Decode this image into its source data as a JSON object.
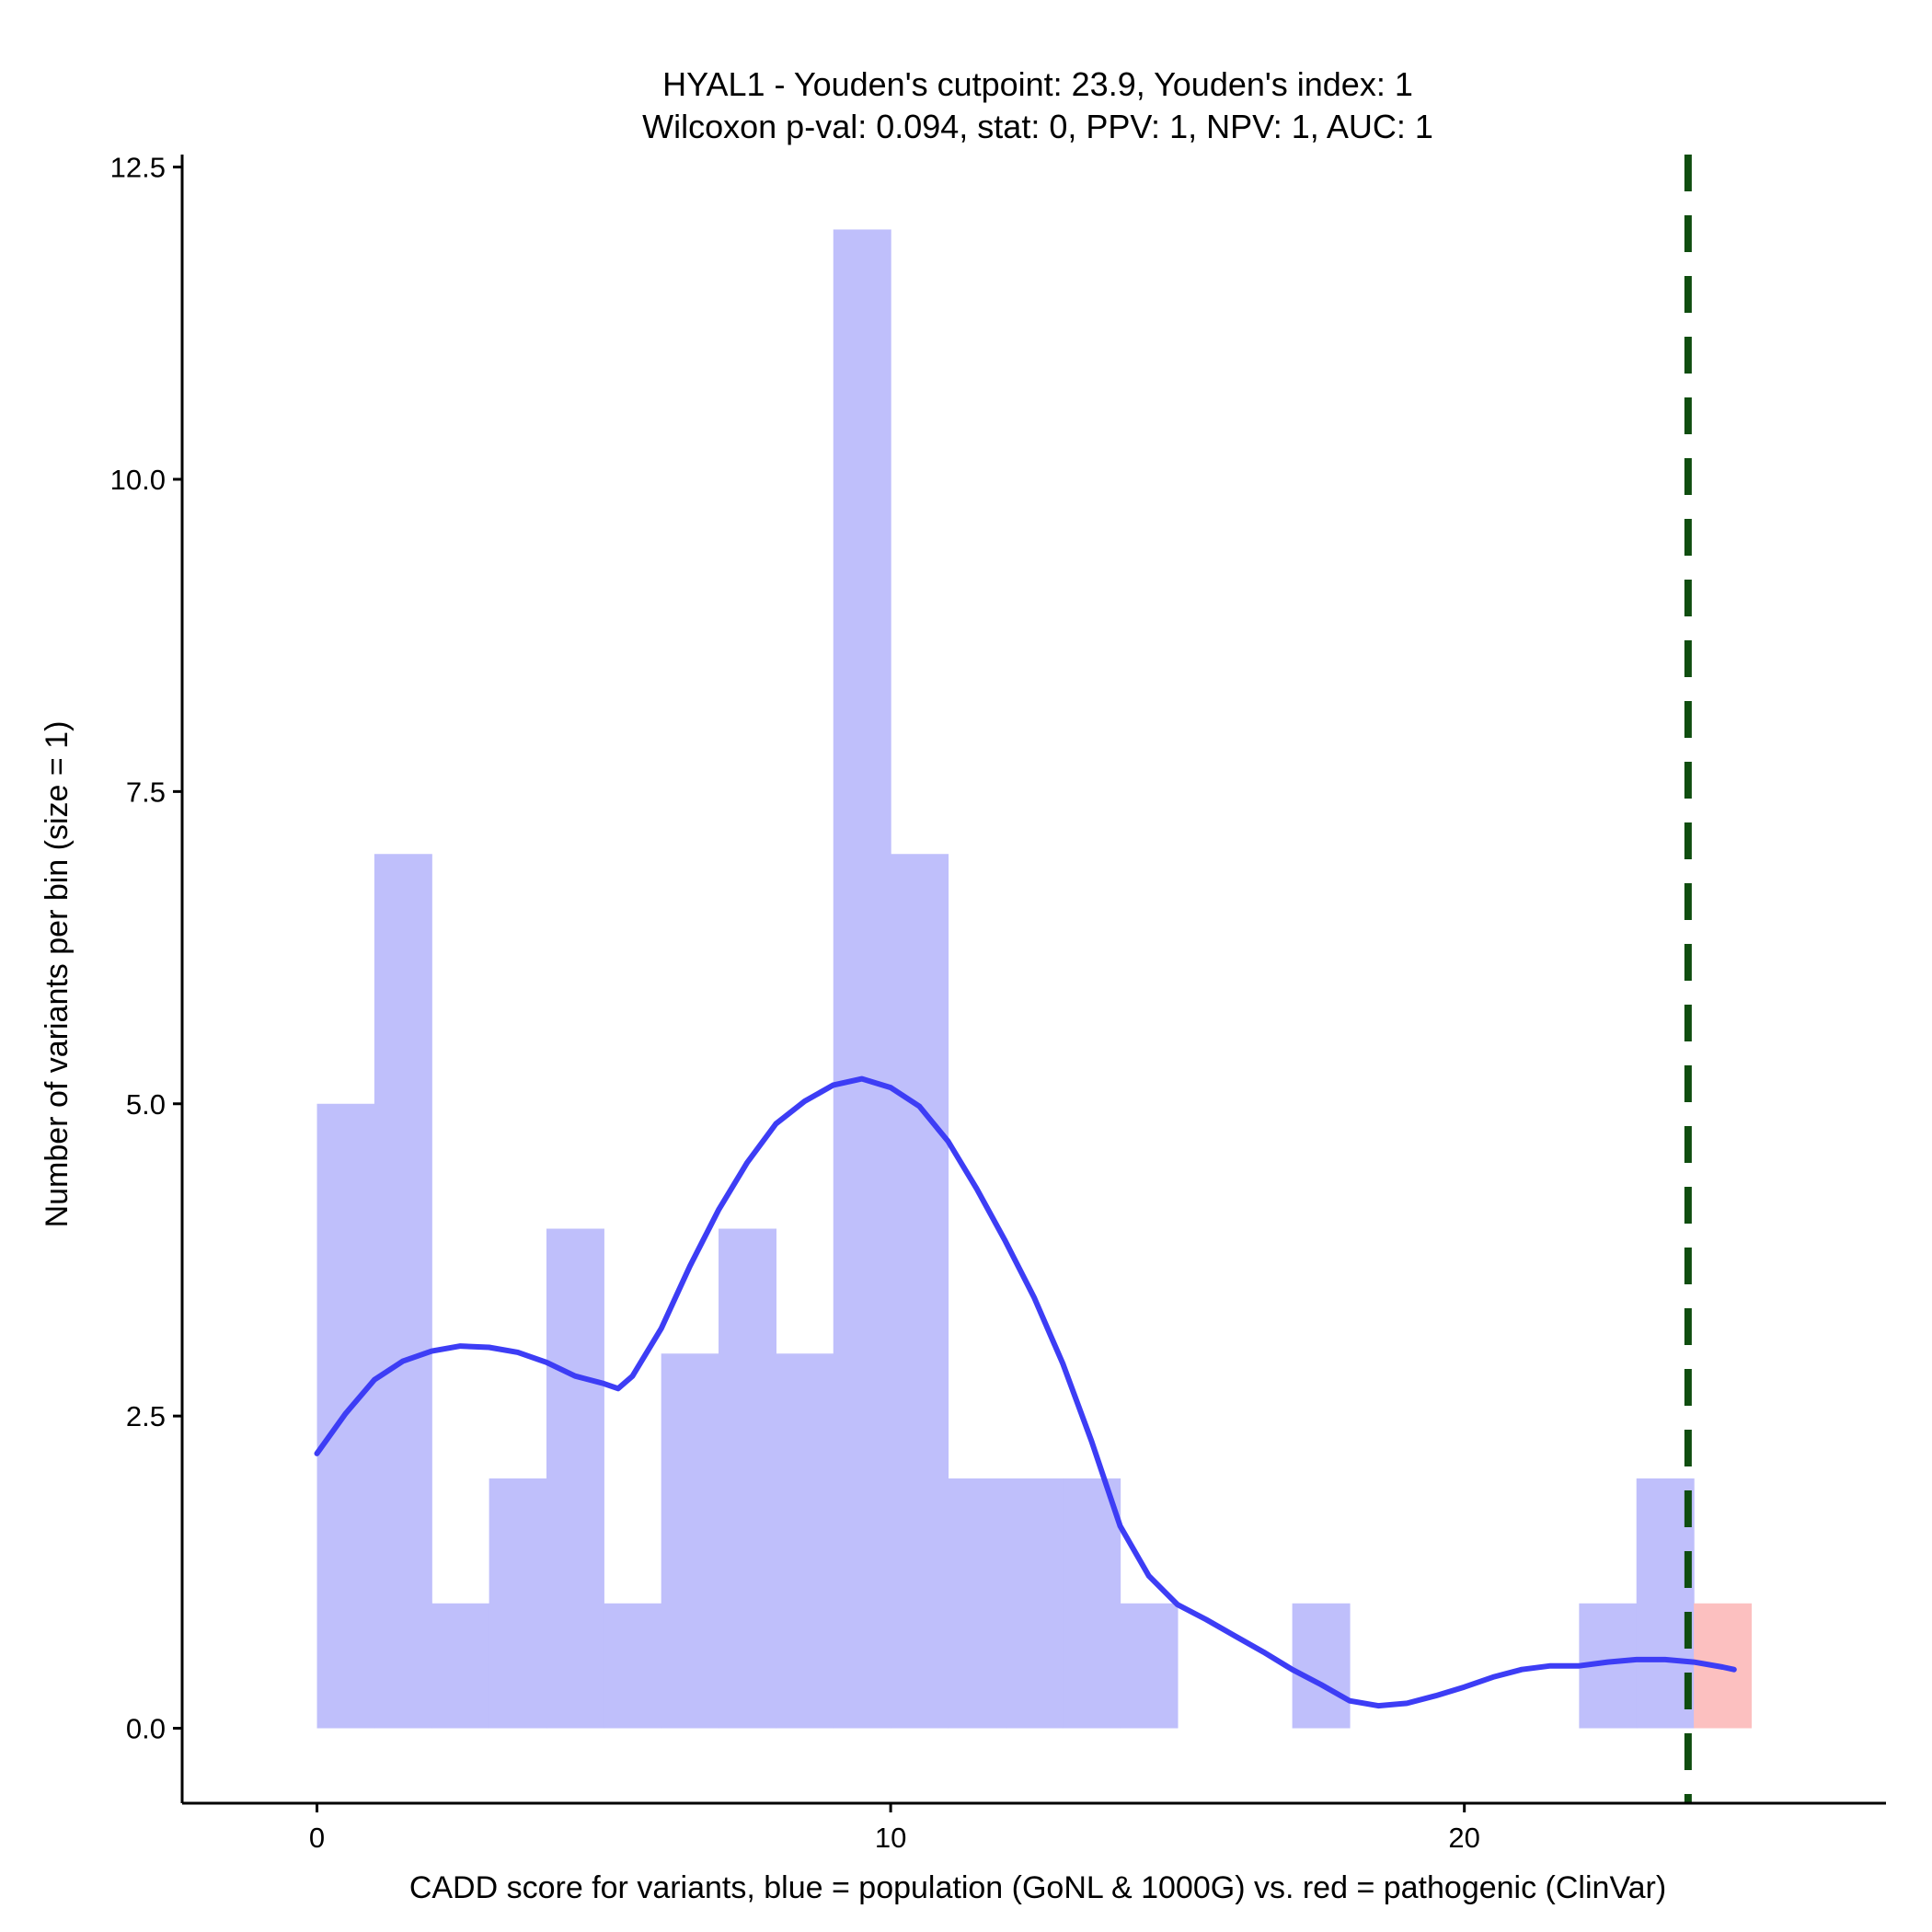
{
  "chart_data": {
    "type": "bar",
    "title_line1": "HYAL1 - Youden's cutpoint: 23.9, Youden's index: 1",
    "title_line2": "Wilcoxon p-val: 0.094, stat: 0, PPV: 1, NPV: 1, AUC: 1",
    "xlabel": "CADD score for variants, blue = population (GoNL & 1000G) vs. red = pathogenic (ClinVar)",
    "ylabel": "Number of variants per bin (size = 1)",
    "xlim": [
      -2.35,
      27.35
    ],
    "ylim": [
      -0.6,
      12.6
    ],
    "x_ticks": [
      0,
      10,
      20
    ],
    "x_tick_labels": [
      "0",
      "10",
      "20"
    ],
    "y_ticks": [
      0,
      2.5,
      5,
      7.5,
      10,
      12.5
    ],
    "y_tick_labels": [
      "0.0",
      "2.5",
      "5.0",
      "7.5",
      "10.0",
      "12.5"
    ],
    "bin_width": 1,
    "series": [
      {
        "name": "population (GoNL & 1000G)",
        "color": "#bfbffb",
        "bins": [
          {
            "x0": 0,
            "count": 5
          },
          {
            "x0": 1,
            "count": 7
          },
          {
            "x0": 2,
            "count": 1
          },
          {
            "x0": 3,
            "count": 2
          },
          {
            "x0": 4,
            "count": 4
          },
          {
            "x0": 5,
            "count": 1
          },
          {
            "x0": 6,
            "count": 3
          },
          {
            "x0": 7,
            "count": 4
          },
          {
            "x0": 8,
            "count": 3
          },
          {
            "x0": 9,
            "count": 12
          },
          {
            "x0": 10,
            "count": 7
          },
          {
            "x0": 11,
            "count": 2
          },
          {
            "x0": 12,
            "count": 2
          },
          {
            "x0": 13,
            "count": 2
          },
          {
            "x0": 14,
            "count": 1
          },
          {
            "x0": 17,
            "count": 1
          },
          {
            "x0": 22,
            "count": 1
          },
          {
            "x0": 23,
            "count": 2
          }
        ]
      },
      {
        "name": "pathogenic (ClinVar)",
        "color": "#fcc0c0",
        "bins": [
          {
            "x0": 24,
            "count": 1
          }
        ]
      }
    ],
    "density_curve": {
      "color": "#3d3df5",
      "points": [
        [
          0.0,
          2.2
        ],
        [
          0.5,
          2.52
        ],
        [
          1.0,
          2.79
        ],
        [
          1.5,
          2.94
        ],
        [
          2.0,
          3.02
        ],
        [
          2.5,
          3.06
        ],
        [
          3.0,
          3.05
        ],
        [
          3.5,
          3.01
        ],
        [
          4.0,
          2.93
        ],
        [
          4.5,
          2.82
        ],
        [
          5.0,
          2.76
        ],
        [
          5.25,
          2.72
        ],
        [
          5.5,
          2.82
        ],
        [
          6.0,
          3.2
        ],
        [
          6.5,
          3.7
        ],
        [
          7.0,
          4.15
        ],
        [
          7.5,
          4.53
        ],
        [
          8.0,
          4.84
        ],
        [
          8.5,
          5.02
        ],
        [
          9.0,
          5.15
        ],
        [
          9.5,
          5.2
        ],
        [
          10.0,
          5.13
        ],
        [
          10.5,
          4.98
        ],
        [
          11.0,
          4.7
        ],
        [
          11.5,
          4.32
        ],
        [
          12.0,
          3.9
        ],
        [
          12.5,
          3.45
        ],
        [
          13.0,
          2.92
        ],
        [
          13.5,
          2.3
        ],
        [
          14.0,
          1.62
        ],
        [
          14.5,
          1.22
        ],
        [
          15.0,
          0.99
        ],
        [
          15.5,
          0.87
        ],
        [
          16.0,
          0.74
        ],
        [
          16.5,
          0.61
        ],
        [
          17.0,
          0.47
        ],
        [
          17.5,
          0.35
        ],
        [
          18.0,
          0.22
        ],
        [
          18.5,
          0.18
        ],
        [
          19.0,
          0.2
        ],
        [
          19.5,
          0.26
        ],
        [
          20.0,
          0.33
        ],
        [
          20.5,
          0.41
        ],
        [
          21.0,
          0.47
        ],
        [
          21.5,
          0.5
        ],
        [
          22.0,
          0.5
        ],
        [
          22.5,
          0.53
        ],
        [
          23.0,
          0.55
        ],
        [
          23.5,
          0.55
        ],
        [
          24.0,
          0.53
        ],
        [
          24.5,
          0.49
        ],
        [
          24.7,
          0.47
        ]
      ]
    },
    "cutpoint": {
      "x": 23.9,
      "color": "#0f4d0f"
    }
  }
}
